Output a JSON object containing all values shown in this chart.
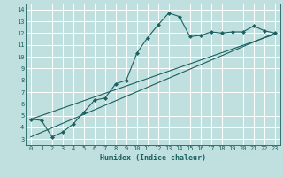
{
  "xlabel": "Humidex (Indice chaleur)",
  "bg_color": "#c0e0e0",
  "line_color": "#1a6060",
  "grid_color": "#ffffff",
  "xlim": [
    -0.5,
    23.5
  ],
  "ylim": [
    2.5,
    14.5
  ],
  "xticks": [
    0,
    1,
    2,
    3,
    4,
    5,
    6,
    7,
    8,
    9,
    10,
    11,
    12,
    13,
    14,
    15,
    16,
    17,
    18,
    19,
    20,
    21,
    22,
    23
  ],
  "yticks": [
    3,
    4,
    5,
    6,
    7,
    8,
    9,
    10,
    11,
    12,
    13,
    14
  ],
  "series1_x": [
    0,
    1,
    2,
    3,
    4,
    5,
    6,
    7,
    8,
    9,
    10,
    11,
    12,
    13,
    14,
    15,
    16,
    17,
    18,
    19,
    20,
    21,
    22,
    23
  ],
  "series1_y": [
    4.7,
    4.6,
    3.2,
    3.6,
    4.3,
    5.3,
    6.3,
    6.5,
    7.7,
    8.0,
    10.3,
    11.6,
    12.7,
    13.7,
    13.4,
    11.7,
    11.8,
    12.1,
    12.0,
    12.1,
    12.1,
    12.6,
    12.2,
    12.0
  ],
  "series2_x": [
    0,
    23
  ],
  "series2_y": [
    4.7,
    11.9
  ],
  "series3_x": [
    0,
    23
  ],
  "series3_y": [
    3.2,
    12.0
  ],
  "marker": "D",
  "markersize": 2,
  "linewidth": 0.8,
  "tick_fontsize": 5,
  "xlabel_fontsize": 6
}
